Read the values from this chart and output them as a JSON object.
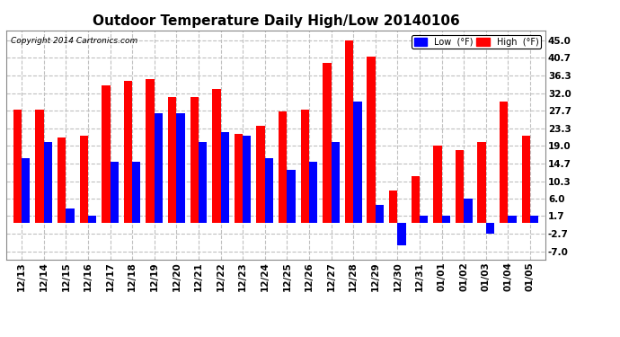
{
  "title": "Outdoor Temperature Daily High/Low 20140106",
  "copyright": "Copyright 2014 Cartronics.com",
  "dates": [
    "12/13",
    "12/14",
    "12/15",
    "12/16",
    "12/17",
    "12/18",
    "12/19",
    "12/20",
    "12/21",
    "12/22",
    "12/23",
    "12/24",
    "12/25",
    "12/26",
    "12/27",
    "12/28",
    "12/29",
    "12/30",
    "12/31",
    "01/01",
    "01/02",
    "01/03",
    "01/04",
    "01/05"
  ],
  "highs": [
    28.0,
    28.0,
    21.0,
    21.5,
    34.0,
    35.0,
    35.5,
    31.0,
    31.0,
    33.0,
    22.0,
    24.0,
    27.5,
    28.0,
    39.5,
    45.0,
    41.0,
    8.0,
    11.5,
    19.0,
    18.0,
    20.0,
    30.0,
    21.5
  ],
  "lows": [
    16.0,
    20.0,
    3.5,
    1.7,
    15.0,
    15.0,
    27.0,
    27.0,
    20.0,
    22.5,
    21.5,
    16.0,
    13.0,
    15.0,
    20.0,
    30.0,
    4.5,
    -5.5,
    1.7,
    1.7,
    6.0,
    -2.7,
    1.7,
    1.7
  ],
  "high_color": "#ff0000",
  "low_color": "#0000ff",
  "bg_color": "#ffffff",
  "grid_color": "#c0c0c0",
  "yticks": [
    45.0,
    40.7,
    36.3,
    32.0,
    27.7,
    23.3,
    19.0,
    14.7,
    10.3,
    6.0,
    1.7,
    -2.7,
    -7.0
  ],
  "ylim": [
    -9.0,
    47.5
  ],
  "bar_width": 0.38,
  "title_fontsize": 11,
  "tick_fontsize": 7.5,
  "legend_fontsize": 7
}
